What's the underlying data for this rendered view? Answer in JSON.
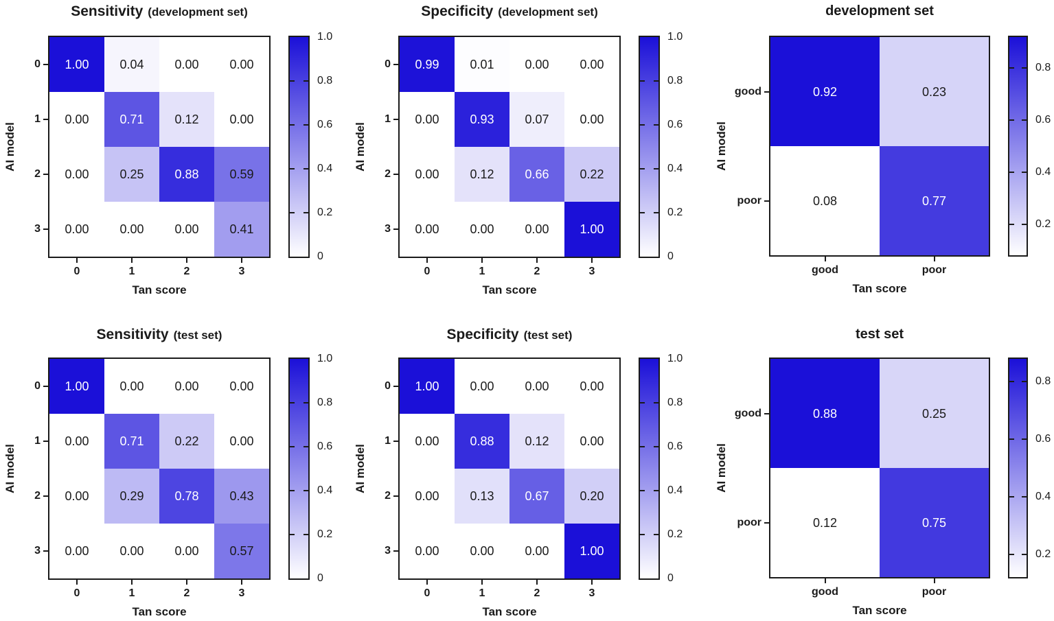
{
  "colors": {
    "background": "#ffffff",
    "text": "#1a1a1a",
    "axis": "#1a1a1a",
    "heat_min": "#ffffff",
    "heat_max": "#1B10D8",
    "cell_text_light": "#ffffff",
    "cell_text_dark": "#1a1a1a"
  },
  "chart_data": [
    {
      "id": "sensitivity-development",
      "type": "heatmap",
      "title": "Sensitivity",
      "title_suffix": "(development set)",
      "xlabel": "Tan score",
      "ylabel": "AI model",
      "x_categories": [
        "0",
        "1",
        "2",
        "3"
      ],
      "y_categories": [
        "0",
        "1",
        "2",
        "3"
      ],
      "values": [
        [
          1.0,
          0.04,
          0.0,
          0.0
        ],
        [
          0.0,
          0.71,
          0.12,
          0.0
        ],
        [
          0.0,
          0.25,
          0.88,
          0.59
        ],
        [
          0.0,
          0.0,
          0.0,
          0.41
        ]
      ],
      "colorbar": {
        "min": 0,
        "max": 1,
        "tick_values": [
          1.0,
          0.8,
          0.6,
          0.4,
          0.2,
          0
        ],
        "tick_labels": [
          "1.0",
          "0.8",
          "0.6",
          "0.4",
          "0.2",
          "0"
        ],
        "tick_marks": [
          0.8,
          0.6,
          0.4,
          0.2
        ]
      }
    },
    {
      "id": "specificity-development",
      "type": "heatmap",
      "title": "Specificity",
      "title_suffix": "(development set)",
      "xlabel": "Tan score",
      "ylabel": "AI model",
      "x_categories": [
        "0",
        "1",
        "2",
        "3"
      ],
      "y_categories": [
        "0",
        "1",
        "2",
        "3"
      ],
      "values": [
        [
          0.99,
          0.01,
          0.0,
          0.0
        ],
        [
          0.0,
          0.93,
          0.07,
          0.0
        ],
        [
          0.0,
          0.12,
          0.66,
          0.22
        ],
        [
          0.0,
          0.0,
          0.0,
          1.0
        ]
      ],
      "colorbar": {
        "min": 0,
        "max": 1,
        "tick_values": [
          1.0,
          0.8,
          0.6,
          0.4,
          0.2,
          0
        ],
        "tick_labels": [
          "1.0",
          "0.8",
          "0.6",
          "0.4",
          "0.2",
          "0"
        ],
        "tick_marks": [
          0.8,
          0.6,
          0.4,
          0.2
        ]
      }
    },
    {
      "id": "development-set-binary",
      "type": "heatmap",
      "title": "development set",
      "title_suffix": "",
      "xlabel": "Tan score",
      "ylabel": "AI model",
      "x_categories": [
        "good",
        "poor"
      ],
      "y_categories": [
        "good",
        "poor"
      ],
      "values": [
        [
          0.92,
          0.23
        ],
        [
          0.08,
          0.77
        ]
      ],
      "colorbar": {
        "min": 0.08,
        "max": 0.92,
        "tick_values": [
          0.8,
          0.6,
          0.4,
          0.2
        ],
        "tick_labels": [
          "0.8",
          "0.6",
          "0.4",
          "0.2"
        ],
        "tick_marks": [
          0.8,
          0.6,
          0.4,
          0.2
        ]
      }
    },
    {
      "id": "sensitivity-test",
      "type": "heatmap",
      "title": "Sensitivity",
      "title_suffix": "(test set)",
      "xlabel": "Tan score",
      "ylabel": "AI model",
      "x_categories": [
        "0",
        "1",
        "2",
        "3"
      ],
      "y_categories": [
        "0",
        "1",
        "2",
        "3"
      ],
      "values": [
        [
          1.0,
          0.0,
          0.0,
          0.0
        ],
        [
          0.0,
          0.71,
          0.22,
          0.0
        ],
        [
          0.0,
          0.29,
          0.78,
          0.43
        ],
        [
          0.0,
          0.0,
          0.0,
          0.57
        ]
      ],
      "colorbar": {
        "min": 0,
        "max": 1,
        "tick_values": [
          1.0,
          0.8,
          0.6,
          0.4,
          0.2,
          0
        ],
        "tick_labels": [
          "1.0",
          "0.8",
          "0.6",
          "0.4",
          "0.2",
          "0"
        ],
        "tick_marks": [
          0.8,
          0.6,
          0.4,
          0.2
        ]
      }
    },
    {
      "id": "specificity-test",
      "type": "heatmap",
      "title": "Specificity",
      "title_suffix": "(test set)",
      "xlabel": "Tan score",
      "ylabel": "AI model",
      "x_categories": [
        "0",
        "1",
        "2",
        "3"
      ],
      "y_categories": [
        "0",
        "1",
        "2",
        "3"
      ],
      "values": [
        [
          1.0,
          0.0,
          0.0,
          0.0
        ],
        [
          0.0,
          0.88,
          0.12,
          0.0
        ],
        [
          0.0,
          0.13,
          0.67,
          0.2
        ],
        [
          0.0,
          0.0,
          0.0,
          1.0
        ]
      ],
      "colorbar": {
        "min": 0,
        "max": 1,
        "tick_values": [
          1.0,
          0.8,
          0.6,
          0.4,
          0.2,
          0
        ],
        "tick_labels": [
          "1.0",
          "0.8",
          "0.6",
          "0.4",
          "0.2",
          "0"
        ],
        "tick_marks": [
          0.8,
          0.6,
          0.4,
          0.2
        ]
      }
    },
    {
      "id": "test-set-binary",
      "type": "heatmap",
      "title": "test set",
      "title_suffix": "",
      "xlabel": "Tan score",
      "ylabel": "AI model",
      "x_categories": [
        "good",
        "poor"
      ],
      "y_categories": [
        "good",
        "poor"
      ],
      "values": [
        [
          0.88,
          0.25
        ],
        [
          0.12,
          0.75
        ]
      ],
      "colorbar": {
        "min": 0.12,
        "max": 0.88,
        "tick_values": [
          0.8,
          0.6,
          0.4,
          0.2
        ],
        "tick_labels": [
          "0.8",
          "0.6",
          "0.4",
          "0.2"
        ],
        "tick_marks": [
          0.8,
          0.6,
          0.4,
          0.2
        ]
      }
    }
  ]
}
